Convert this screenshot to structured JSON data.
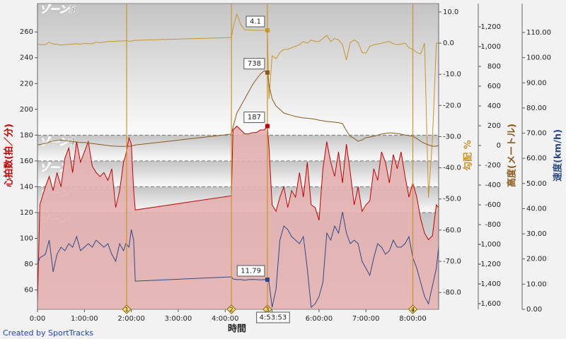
{
  "chart_data": {
    "type": "line",
    "xlabel": "時間",
    "credit": "Created by SportTracks",
    "xlim": [
      0,
      513
    ],
    "xticks": [
      {
        "value": 0,
        "label": "0:00"
      },
      {
        "value": 60,
        "label": "1:00:00"
      },
      {
        "value": 120,
        "label": "2:00:00"
      },
      {
        "value": 180,
        "label": "3:00:00"
      },
      {
        "value": 240,
        "label": "4:00:00"
      },
      {
        "value": 300,
        "label": "5:00:00"
      },
      {
        "value": 360,
        "label": "6:00:00"
      },
      {
        "value": 420,
        "label": "7:00:00"
      },
      {
        "value": 480,
        "label": "8:00:00"
      }
    ],
    "ylabel": "心拍数(拍／分)",
    "ylim": [
      45,
      282
    ],
    "yticks": [
      60,
      80,
      100,
      120,
      140,
      160,
      180,
      200,
      220,
      240,
      260
    ],
    "y2label": "勾配 %",
    "y2lim": [
      -85.4,
      12.7
    ],
    "y2ticks": [
      {
        "value": 10,
        "label": "10.0"
      },
      {
        "value": 0,
        "label": "0.0"
      },
      {
        "value": -10,
        "label": "-10.0"
      },
      {
        "value": -20,
        "label": "-20.0"
      },
      {
        "value": -30,
        "label": "-30.0"
      },
      {
        "value": -40,
        "label": "-40.0"
      },
      {
        "value": -50,
        "label": "-50.0"
      },
      {
        "value": -60,
        "label": "-60.0"
      },
      {
        "value": -70,
        "label": "-70.0"
      },
      {
        "value": -80,
        "label": "-80.0"
      }
    ],
    "y3label": "高度(メートル)",
    "y3lim": [
      -1657,
      1436
    ],
    "y3ticks": [
      {
        "value": 1200,
        "label": "1,200"
      },
      {
        "value": 1000,
        "label": "1,000"
      },
      800,
      600,
      400,
      200,
      0,
      -200,
      -400,
      -600,
      -800,
      {
        "value": -1000,
        "label": "-1,000"
      },
      {
        "value": -1200,
        "label": "-1,200"
      },
      {
        "value": -1400,
        "label": "-1,400"
      },
      {
        "value": -1600,
        "label": "-1,600"
      }
    ],
    "y4label": "速度(km/h)",
    "y4lim": [
      0,
      121.5
    ],
    "y4ticks": [
      {
        "value": 0,
        "label": "0.00"
      },
      {
        "value": 10,
        "label": "10.00"
      },
      {
        "value": 20,
        "label": "20.00"
      },
      {
        "value": 30,
        "label": "30.00"
      },
      {
        "value": 40,
        "label": "40.00"
      },
      {
        "value": 50,
        "label": "50.00"
      },
      {
        "value": 60,
        "label": "60.00"
      },
      {
        "value": 70,
        "label": "70.00"
      },
      {
        "value": 80,
        "label": "80.00"
      },
      {
        "value": 90,
        "label": "90.00"
      },
      {
        "value": 100,
        "label": "100.00"
      },
      {
        "value": 110,
        "label": "110.00"
      }
    ],
    "zones": [
      "ゾーン1",
      "ゾーン2",
      "ゾーン3",
      "ゾーン4",
      "ゾーン5"
    ],
    "zone_bounds": [
      120,
      140,
      160,
      180
    ],
    "markers": [
      {
        "label": "1",
        "x": 114
      },
      {
        "label": "2",
        "x": 248
      },
      {
        "label": "3",
        "x": 294
      },
      {
        "label": "4",
        "x": 480
      }
    ],
    "marker_color": "#c8962a",
    "cursor": {
      "x": 294,
      "label": "4:53:53"
    },
    "x": [
      0,
      3,
      10,
      15,
      20,
      25,
      30,
      35,
      40,
      45,
      50,
      55,
      60,
      65,
      70,
      75,
      80,
      85,
      90,
      95,
      100,
      105,
      110,
      113,
      117,
      120,
      123,
      125,
      248,
      250,
      255,
      260,
      265,
      270,
      275,
      280,
      285,
      290,
      294,
      296,
      300,
      305,
      310,
      315,
      320,
      325,
      330,
      335,
      340,
      345,
      350,
      355,
      360,
      365,
      370,
      375,
      380,
      385,
      390,
      395,
      400,
      405,
      410,
      415,
      420,
      425,
      430,
      435,
      440,
      445,
      450,
      455,
      460,
      465,
      470,
      475,
      480,
      485,
      490,
      495,
      500,
      505,
      510,
      513
    ],
    "series": [
      {
        "name": "心拍数",
        "axis": "y",
        "color": "#c00000",
        "fill": "#e4b0b0",
        "values": [
          50,
          126,
          140,
          148,
          137,
          151,
          140,
          162,
          170,
          151,
          175,
          159,
          167,
          175,
          156,
          151,
          148,
          151,
          145,
          154,
          124,
          137,
          159,
          165,
          178,
          173,
          137,
          122,
          133,
          184,
          187,
          184,
          181,
          181,
          182,
          182,
          184,
          184,
          187,
          170,
          126,
          121,
          132,
          140,
          124,
          137,
          132,
          151,
          132,
          159,
          126,
          124,
          114,
          154,
          175,
          159,
          148,
          167,
          143,
          173,
          151,
          126,
          140,
          121,
          126,
          129,
          154,
          145,
          167,
          159,
          143,
          165,
          154,
          167,
          148,
          132,
          143,
          132,
          115,
          104,
          99,
          102,
          126,
          124
        ]
      },
      {
        "name": "勾配",
        "axis": "y2",
        "color": "#c8962a",
        "values": [
          -0.2,
          -0.5,
          -0.5,
          0.3,
          -0.3,
          -0.4,
          -0.6,
          -0.5,
          -0.4,
          -0.3,
          -0.2,
          -0.3,
          -0.1,
          -0.2,
          -0.2,
          0.3,
          0.2,
          0.3,
          0.5,
          0.5,
          0.6,
          0.7,
          0.7,
          0.8,
          0.6,
          0.7,
          0.8,
          0.9,
          1.8,
          4.8,
          9.3,
          5.9,
          4.3,
          4.2,
          4.2,
          4.1,
          4.1,
          4.1,
          4.1,
          -17.9,
          -4,
          -5,
          -3,
          -2,
          -2,
          -1.5,
          -1,
          -0.5,
          0.5,
          0,
          1,
          0.5,
          0.5,
          1.5,
          2.5,
          0.5,
          1.5,
          1,
          -0.5,
          -5.4,
          0.2,
          1,
          0.2,
          -3,
          -3.2,
          -1,
          -0.5,
          -0.3,
          0,
          0.3,
          0.5,
          -0.2,
          -0.5,
          -0.3,
          0,
          -1.5,
          -2,
          -3,
          -3.5,
          0,
          -49.6,
          -31,
          0,
          0
        ]
      },
      {
        "name": "高度",
        "axis": "y3",
        "color": "#8b5a1a",
        "values": [
          5,
          10,
          20,
          35,
          45,
          50,
          55,
          50,
          45,
          40,
          35,
          30,
          30,
          25,
          20,
          15,
          10,
          5,
          0,
          -5,
          -7,
          -8,
          -8,
          -8,
          -7,
          -5,
          0,
          5,
          115,
          186,
          329,
          400,
          472,
          543,
          614,
          672,
          722,
          757,
          738,
          614,
          472,
          400,
          365,
          329,
          315,
          305,
          293,
          286,
          279,
          275,
          272,
          265,
          257,
          250,
          243,
          240,
          236,
          230,
          222,
          150,
          93,
          71,
          43,
          57,
          79,
          86,
          93,
          105,
          115,
          122,
          129,
          125,
          122,
          115,
          107,
          100,
          93,
          71,
          43,
          21,
          7,
          -7,
          -7,
          0
        ]
      },
      {
        "name": "速度",
        "axis": "y4",
        "color": "#2c4a88",
        "values": [
          17.7,
          20.5,
          21.9,
          27.5,
          14.9,
          21.9,
          24.7,
          23.3,
          26.1,
          24.7,
          28.9,
          23.3,
          24.7,
          26.1,
          24.7,
          27.5,
          26.1,
          24.7,
          26.1,
          21.9,
          19.1,
          26.1,
          23.3,
          26.1,
          24.7,
          31.7,
          27.5,
          11.2,
          12.9,
          12.1,
          11.8,
          11.8,
          11.6,
          11.8,
          11.9,
          11.8,
          11.7,
          11.8,
          11.79,
          10.7,
          0.8,
          7.9,
          27.5,
          33.1,
          31.7,
          28.9,
          27.5,
          26.1,
          28.9,
          16.3,
          0.8,
          2.2,
          5.1,
          10.7,
          30.3,
          27.5,
          33.1,
          30.3,
          38.7,
          30.3,
          26.1,
          27.5,
          26.1,
          19.1,
          16.3,
          13.5,
          20.5,
          26.1,
          24.7,
          21.9,
          23.3,
          27.5,
          24.7,
          24.7,
          26.1,
          28.9,
          20.5,
          16.3,
          10.7,
          5.1,
          2.2,
          9.3,
          16.3,
          24.7
        ]
      }
    ]
  }
}
